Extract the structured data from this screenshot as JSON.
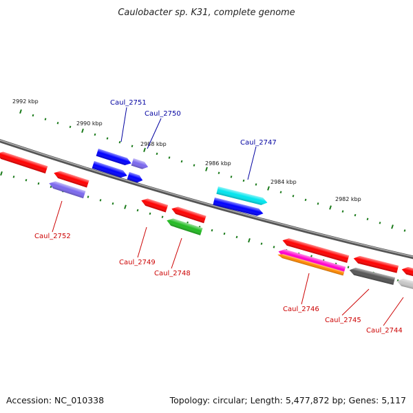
{
  "title": "Caulobacter sp. K31, complete genome",
  "footer": {
    "accession": "Accession: NC_010338",
    "summary": "Topology: circular; Length: 5,477,872 bp; Genes: 5,117"
  },
  "colors": {
    "forward_label": "#0000a0",
    "reverse_label": "#cc0000",
    "backbone": "#808080",
    "tick": "#1a7a1a"
  },
  "ruler_ticks": [
    {
      "label": "2992 kbp"
    },
    {
      "label": "2990 kbp"
    },
    {
      "label": "2988 kbp"
    },
    {
      "label": "2986 kbp"
    },
    {
      "label": "2984 kbp"
    },
    {
      "label": "2982 kbp"
    }
  ],
  "genes": [
    {
      "label": "Caul_2752",
      "strand": "reverse",
      "color": "#ff0000"
    },
    {
      "label": "",
      "strand": "reverse",
      "color": "#ff0000"
    },
    {
      "label": "",
      "strand": "reverse",
      "color": "#7b68ee"
    },
    {
      "label": "Caul_2751",
      "strand": "forward",
      "color": "#0000ff"
    },
    {
      "label": "",
      "strand": "forward",
      "color": "#0000ff"
    },
    {
      "label": "",
      "strand": "forward",
      "color": "#7b68ee"
    },
    {
      "label": "Caul_2750",
      "strand": "forward",
      "color": "#0000ff"
    },
    {
      "label": "Caul_2749",
      "strand": "reverse",
      "color": "#ff0000"
    },
    {
      "label": "",
      "strand": "reverse",
      "color": "#ff0000"
    },
    {
      "label": "Caul_2748",
      "strand": "reverse",
      "color": "#22bb22"
    },
    {
      "label": "Caul_2747",
      "strand": "forward",
      "color": "#00e5ee"
    },
    {
      "label": "",
      "strand": "forward",
      "color": "#0000ff"
    },
    {
      "label": "",
      "strand": "reverse",
      "color": "#ff0000"
    },
    {
      "label": "Caul_2746",
      "strand": "reverse",
      "color": "#ff00cc"
    },
    {
      "label": "",
      "strand": "reverse",
      "color": "#ff8800"
    },
    {
      "label": "",
      "strand": "reverse",
      "color": "#ff0000"
    },
    {
      "label": "Caul_2745",
      "strand": "reverse",
      "color": "#555555"
    },
    {
      "label": "",
      "strand": "reverse",
      "color": "#ff0000"
    },
    {
      "label": "Caul_2744",
      "strand": "reverse",
      "color": "#c8c8c8"
    }
  ]
}
